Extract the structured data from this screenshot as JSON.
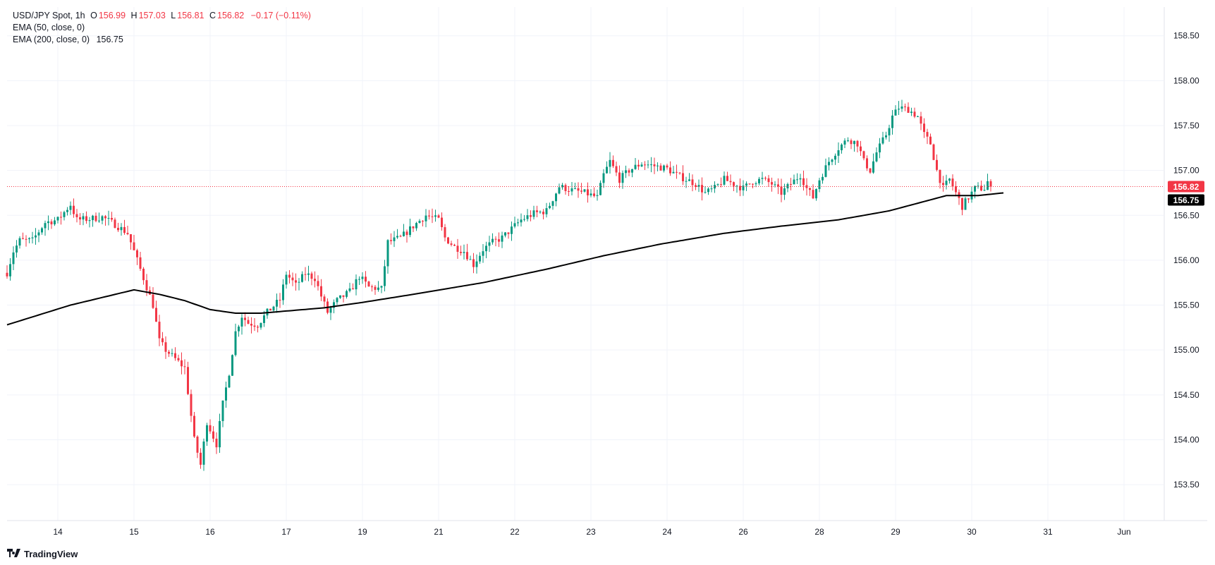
{
  "legend": {
    "symbol": "USD/JPY Spot, 1h",
    "o_label": "O",
    "open": "156.99",
    "h_label": "H",
    "high": "157.03",
    "l_label": "L",
    "low": "156.81",
    "c_label": "C",
    "close": "156.82",
    "change": "−0.17 (−0.11%)",
    "ema50_label": "EMA (50, close, 0)",
    "ema200_label": "EMA (200, close, 0)",
    "ema200_value": "156.75"
  },
  "price_tags": {
    "last_price": "156.82",
    "ema200": "156.75"
  },
  "watermark": "TradingView",
  "colors": {
    "up": "#089981",
    "down": "#f23645",
    "ema": "#000000",
    "grid": "#f0f3fa",
    "axis_text": "#131722"
  },
  "chart_data": {
    "type": "candlestick",
    "title": "USD/JPY Spot, 1h",
    "y_ticks": [
      153.5,
      154.0,
      154.5,
      155.0,
      155.5,
      156.0,
      156.5,
      157.0,
      157.5,
      158.0,
      158.5
    ],
    "y_tick_labels": [
      "153.50",
      "154.00",
      "154.50",
      "155.00",
      "155.50",
      "156.00",
      "156.50",
      "157.00",
      "157.50",
      "158.00",
      "158.50"
    ],
    "ylim": [
      153.1,
      158.82
    ],
    "x_ticks": [
      "14",
      "15",
      "16",
      "17",
      "19",
      "21",
      "22",
      "23",
      "24",
      "26",
      "28",
      "29",
      "30",
      "31",
      "Jun"
    ],
    "x_tick_index": [
      16,
      40,
      64,
      88,
      112,
      136,
      160,
      184,
      208,
      232,
      256,
      280,
      304,
      328,
      352
    ],
    "last_price": 156.82,
    "grid": true,
    "price_anchors": [
      [
        0,
        155.86
      ],
      [
        2,
        156.1
      ],
      [
        4,
        156.22
      ],
      [
        8,
        156.22
      ],
      [
        12,
        156.42
      ],
      [
        16,
        156.45
      ],
      [
        20,
        156.62
      ],
      [
        22,
        156.45
      ],
      [
        26,
        156.46
      ],
      [
        30,
        156.48
      ],
      [
        34,
        156.4
      ],
      [
        38,
        156.3
      ],
      [
        42,
        155.9
      ],
      [
        46,
        155.5
      ],
      [
        48,
        155.1
      ],
      [
        50,
        155.0
      ],
      [
        53,
        154.9
      ],
      [
        56,
        154.8
      ],
      [
        59,
        154.0
      ],
      [
        61,
        153.72
      ],
      [
        63,
        154.2
      ],
      [
        66,
        153.95
      ],
      [
        68,
        154.4
      ],
      [
        70,
        154.75
      ],
      [
        72,
        155.2
      ],
      [
        74,
        155.38
      ],
      [
        76,
        155.3
      ],
      [
        79,
        155.28
      ],
      [
        82,
        155.42
      ],
      [
        86,
        155.56
      ],
      [
        88,
        155.85
      ],
      [
        91,
        155.72
      ],
      [
        94,
        155.85
      ],
      [
        97,
        155.8
      ],
      [
        99,
        155.6
      ],
      [
        101,
        155.42
      ],
      [
        104,
        155.55
      ],
      [
        108,
        155.65
      ],
      [
        111,
        155.82
      ],
      [
        114,
        155.7
      ],
      [
        118,
        155.68
      ],
      [
        120,
        156.2
      ],
      [
        124,
        156.25
      ],
      [
        128,
        156.38
      ],
      [
        132,
        156.5
      ],
      [
        136,
        156.45
      ],
      [
        138,
        156.25
      ],
      [
        141,
        156.15
      ],
      [
        144,
        156.1
      ],
      [
        147,
        155.95
      ],
      [
        150,
        156.12
      ],
      [
        153,
        156.2
      ],
      [
        156,
        156.25
      ],
      [
        159,
        156.35
      ],
      [
        162,
        156.45
      ],
      [
        166,
        156.52
      ],
      [
        170,
        156.55
      ],
      [
        174,
        156.82
      ],
      [
        178,
        156.78
      ],
      [
        182,
        156.75
      ],
      [
        186,
        156.7
      ],
      [
        188,
        156.95
      ],
      [
        190,
        157.1
      ],
      [
        193,
        156.9
      ],
      [
        196,
        157.0
      ],
      [
        200,
        157.08
      ],
      [
        204,
        157.05
      ],
      [
        208,
        157.02
      ],
      [
        211,
        156.95
      ],
      [
        214,
        156.9
      ],
      [
        217,
        156.85
      ],
      [
        220,
        156.75
      ],
      [
        223,
        156.8
      ],
      [
        226,
        156.9
      ],
      [
        229,
        156.85
      ],
      [
        232,
        156.8
      ],
      [
        235,
        156.88
      ],
      [
        238,
        156.9
      ],
      [
        241,
        156.85
      ],
      [
        244,
        156.75
      ],
      [
        247,
        156.85
      ],
      [
        250,
        156.95
      ],
      [
        252,
        156.8
      ],
      [
        254,
        156.7
      ],
      [
        256,
        156.9
      ],
      [
        259,
        157.1
      ],
      [
        262,
        157.25
      ],
      [
        265,
        157.35
      ],
      [
        268,
        157.3
      ],
      [
        270,
        157.1
      ],
      [
        272,
        157.0
      ],
      [
        274,
        157.2
      ],
      [
        277,
        157.4
      ],
      [
        279,
        157.6
      ],
      [
        281,
        157.7
      ],
      [
        284,
        157.68
      ],
      [
        287,
        157.6
      ],
      [
        289,
        157.4
      ],
      [
        291,
        157.3
      ],
      [
        293,
        157.0
      ],
      [
        295,
        156.8
      ],
      [
        297,
        156.9
      ],
      [
        299,
        156.75
      ],
      [
        301,
        156.6
      ],
      [
        303,
        156.7
      ],
      [
        305,
        156.8
      ],
      [
        308,
        156.8
      ],
      [
        310,
        156.95
      ]
    ],
    "ema200_anchors": [
      [
        0,
        155.28
      ],
      [
        20,
        155.5
      ],
      [
        40,
        155.67
      ],
      [
        48,
        155.62
      ],
      [
        56,
        155.55
      ],
      [
        64,
        155.45
      ],
      [
        72,
        155.41
      ],
      [
        80,
        155.41
      ],
      [
        100,
        155.47
      ],
      [
        112,
        155.53
      ],
      [
        128,
        155.62
      ],
      [
        150,
        155.75
      ],
      [
        170,
        155.9
      ],
      [
        188,
        156.05
      ],
      [
        206,
        156.18
      ],
      [
        226,
        156.3
      ],
      [
        244,
        156.38
      ],
      [
        262,
        156.45
      ],
      [
        278,
        156.55
      ],
      [
        296,
        156.72
      ],
      [
        306,
        156.72
      ],
      [
        314,
        156.75
      ]
    ]
  }
}
